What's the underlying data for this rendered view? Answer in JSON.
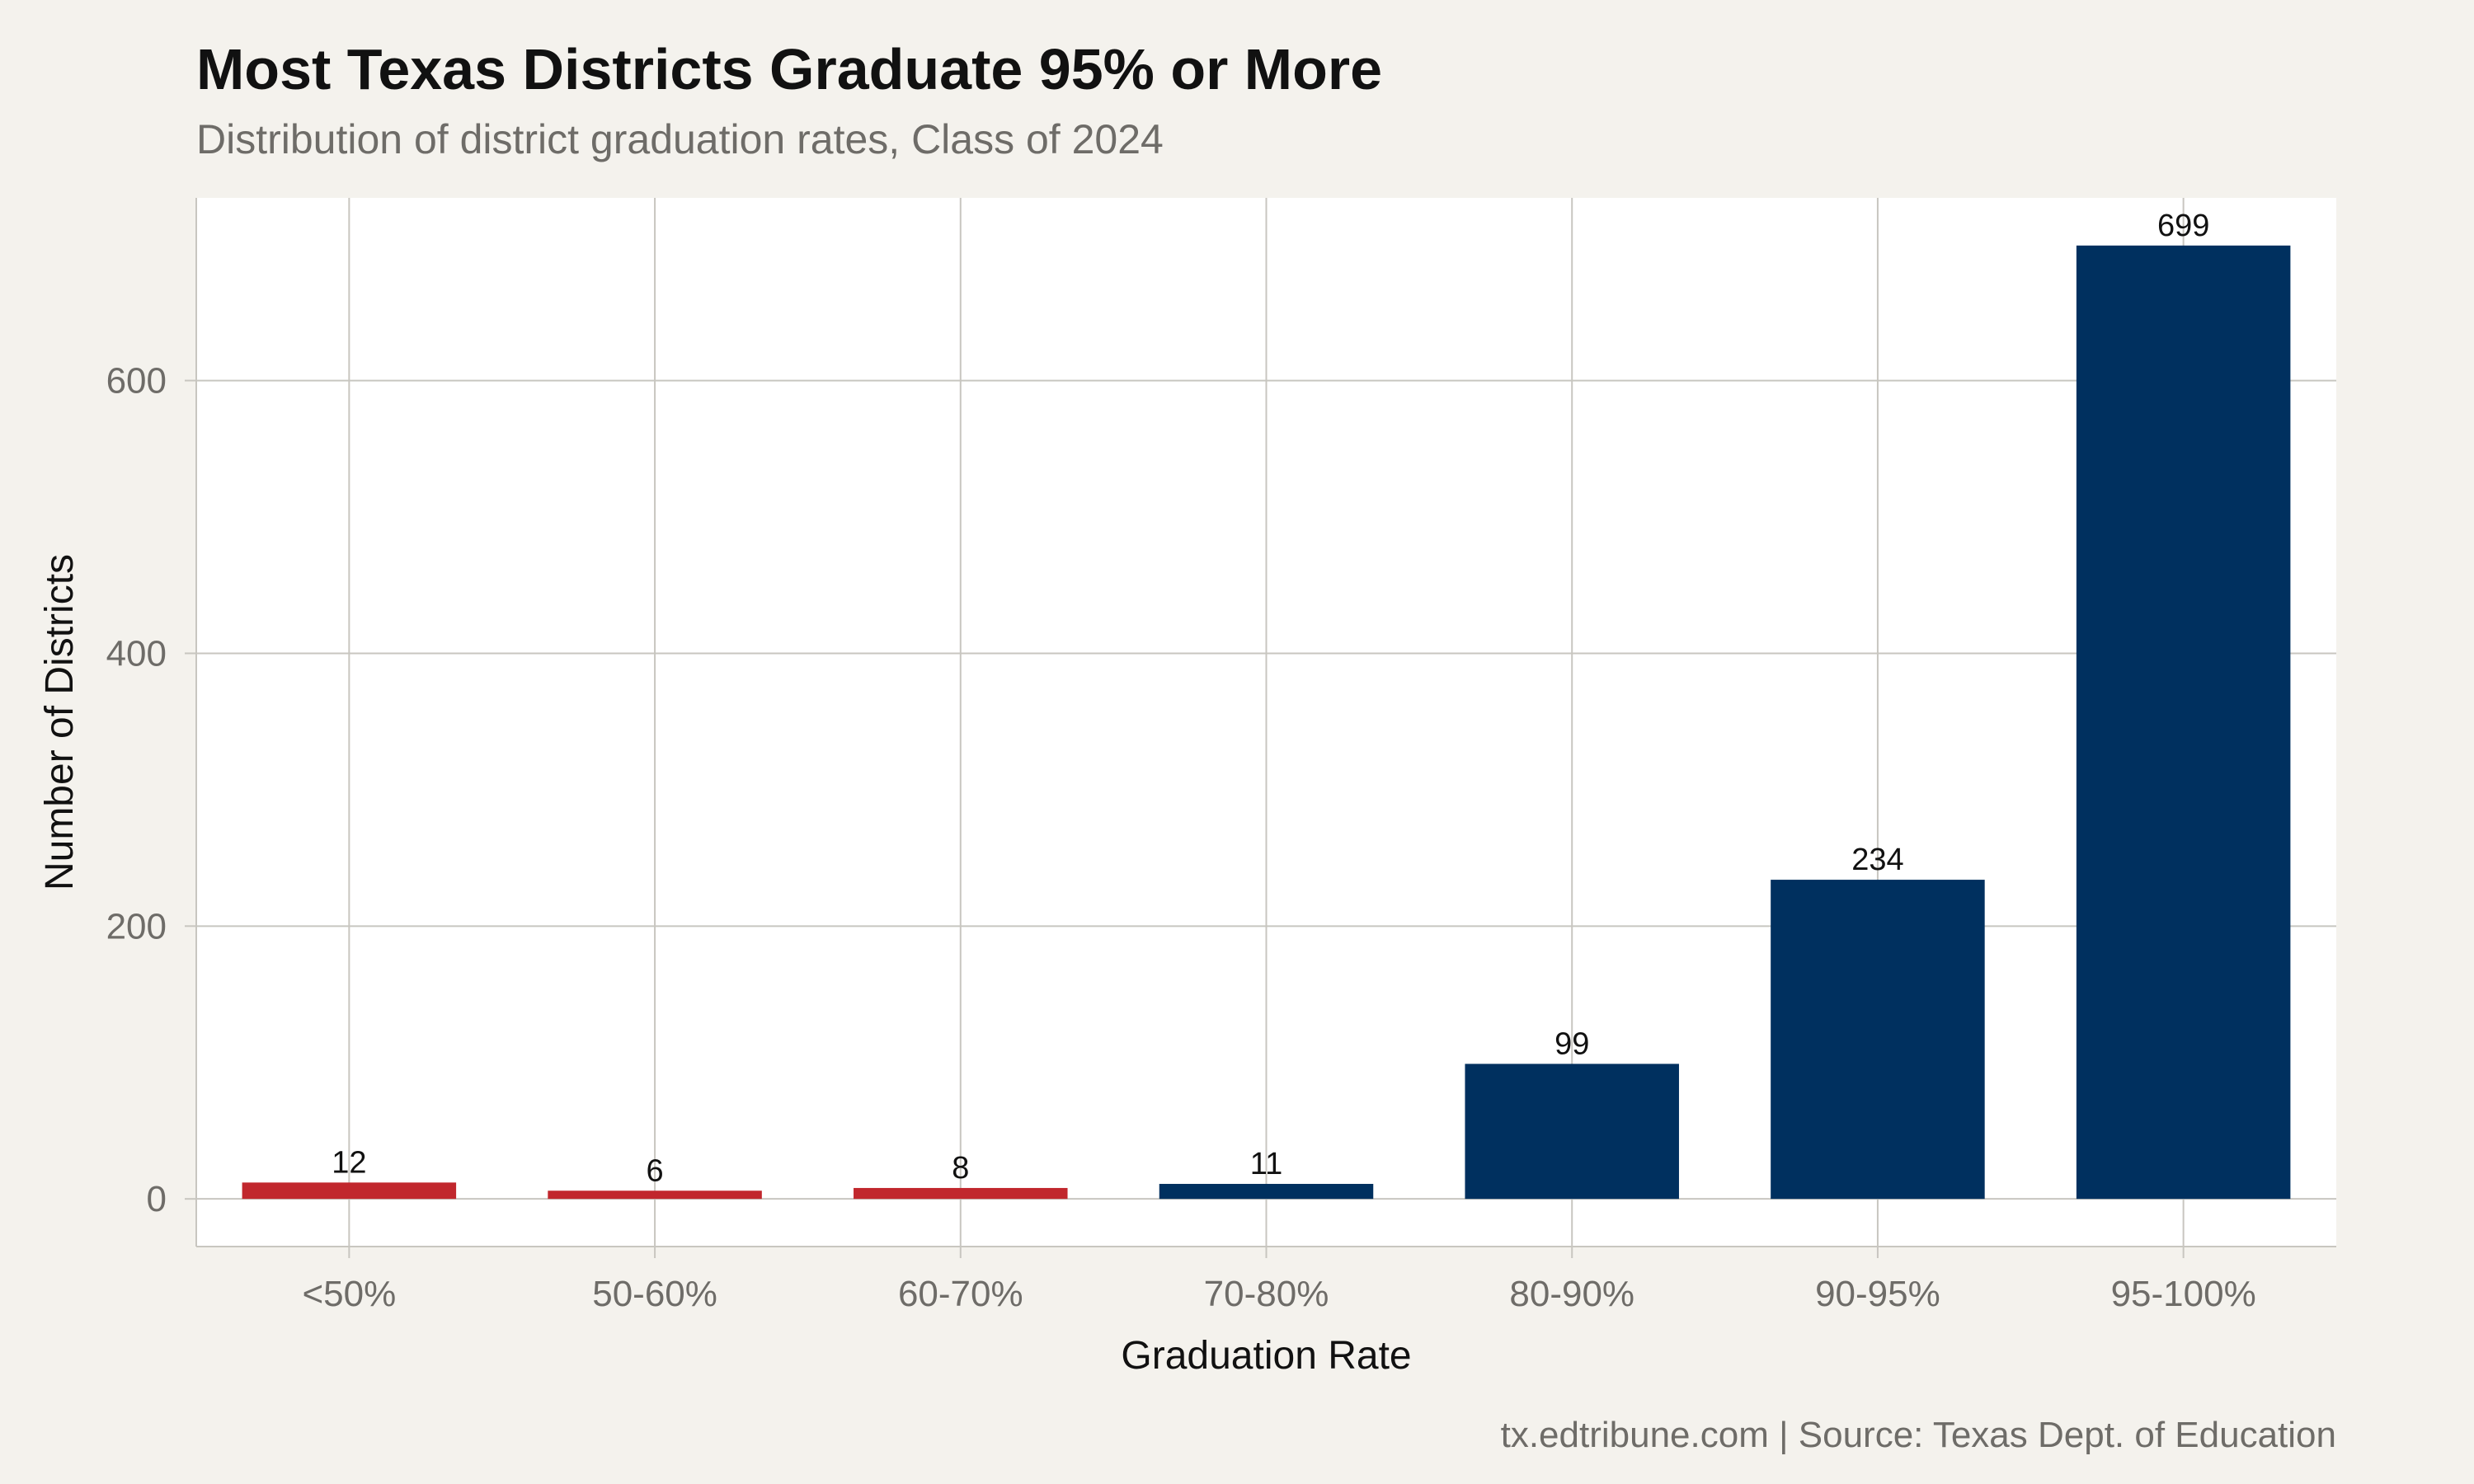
{
  "chart_data": {
    "type": "bar",
    "title": "Most Texas Districts Graduate 95% or More",
    "subtitle": "Distribution of district graduation rates, Class of 2024",
    "caption": "tx.edtribune.com | Source: Texas Dept. of Education",
    "xlabel": "Graduation Rate",
    "ylabel": "Number of Districts",
    "categories": [
      "<50%",
      "50-60%",
      "60-70%",
      "70-80%",
      "80-90%",
      "90-95%",
      "95-100%"
    ],
    "values": [
      12,
      6,
      8,
      11,
      99,
      234,
      699
    ],
    "data_labels": [
      "12",
      "6",
      "8",
      "11",
      "99",
      "234",
      "699"
    ],
    "bar_colors": [
      "#c1272d",
      "#c1272d",
      "#c1272d",
      "#00305f",
      "#00305f",
      "#00305f",
      "#00305f"
    ],
    "ylim": [
      -34.95,
      733.95
    ],
    "yticks": [
      0,
      200,
      400,
      600
    ],
    "ytick_labels": [
      "0",
      "200",
      "400",
      "600"
    ],
    "grid": true,
    "panel_background": "#ffffff",
    "page_background": "#f4f2ed",
    "grid_color": "#c8c6c0"
  }
}
